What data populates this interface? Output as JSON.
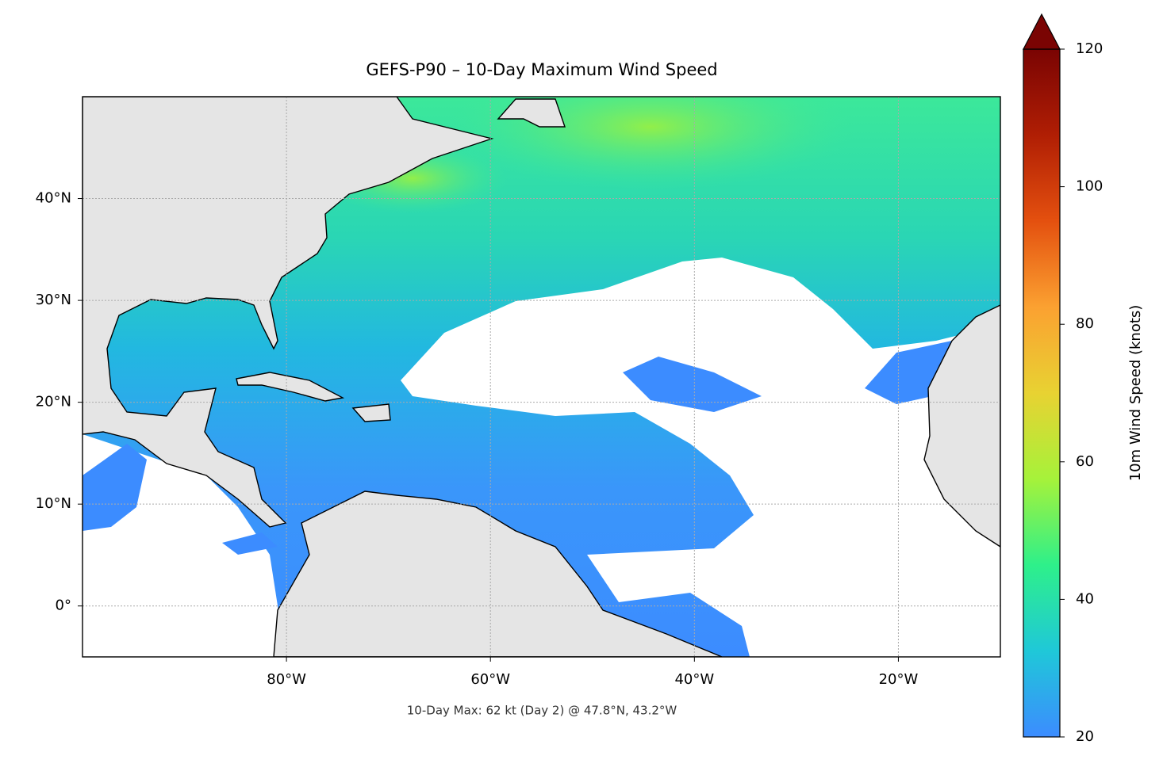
{
  "chart_data": {
    "type": "map",
    "title": "GEFS-P90 – 10-Day Maximum Wind Speed",
    "annotation": "10-Day Max: 62 kt (Day 2) @ 47.8°N, 43.2°W",
    "xlim": [
      -100,
      -10
    ],
    "ylim": [
      -5,
      50
    ],
    "xticks": [
      {
        "value": -80,
        "label": "80°W"
      },
      {
        "value": -60,
        "label": "60°W"
      },
      {
        "value": -40,
        "label": "40°W"
      },
      {
        "value": -20,
        "label": "20°W"
      }
    ],
    "yticks": [
      {
        "value": 0,
        "label": "0°"
      },
      {
        "value": 10,
        "label": "10°N"
      },
      {
        "value": 20,
        "label": "20°N"
      },
      {
        "value": 30,
        "label": "30°N"
      },
      {
        "value": 40,
        "label": "40°N"
      }
    ],
    "grid": true,
    "colorbar": {
      "label": "10m Wind Speed (knots)",
      "lim": [
        20,
        120
      ],
      "ticks": [
        20,
        40,
        60,
        80,
        100,
        120
      ],
      "colors": [
        "#3c8cff",
        "#1fc8d8",
        "#2ef08a",
        "#a6f23a",
        "#e8d232",
        "#fba131",
        "#e4500f",
        "#b01e04",
        "#7a0403"
      ]
    }
  }
}
